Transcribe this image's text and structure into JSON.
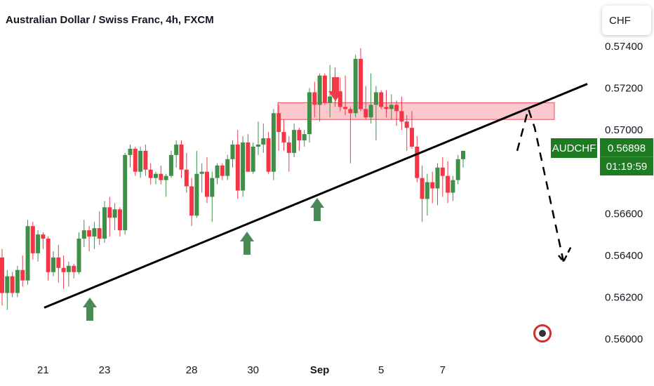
{
  "header": {
    "title": "Australian Dollar / Swiss Franc, 4h, FXCM"
  },
  "currency_box": {
    "label": "CHF"
  },
  "price_tag": {
    "symbol": "AUDCHF",
    "price": "0.56898",
    "countdown": "01:19:59"
  },
  "colors": {
    "up": "#3f8f49",
    "down": "#f23645",
    "trend": "#000000",
    "zone": "#f8a5ac",
    "zone_border": "#ef4a5a",
    "arrow_up": "#4a8a55",
    "arrow_down": "#ef3b48",
    "label_bg": "#1e7b22"
  },
  "chart_data": {
    "type": "candlestick",
    "symbol": "AUDCHF",
    "timeframe": "4h",
    "ylim": [
      0.5598,
      0.5743
    ],
    "y_ticks": [
      "0.57400",
      "0.57200",
      "0.57000",
      "0.56800",
      "0.56600",
      "0.56400",
      "0.56200",
      "0.56000"
    ],
    "x_ticks": [
      {
        "label": "21",
        "index": 8
      },
      {
        "label": "23",
        "index": 20
      },
      {
        "label": "28",
        "index": 37
      },
      {
        "label": "30",
        "index": 49
      },
      {
        "label": "Sep",
        "index": 62
      },
      {
        "label": "5",
        "index": 74
      },
      {
        "label": "7",
        "index": 86
      }
    ],
    "candles": [
      [
        0.5639,
        0.5643,
        0.5616,
        0.5622
      ],
      [
        0.5622,
        0.5633,
        0.5614,
        0.563
      ],
      [
        0.563,
        0.5632,
        0.562,
        0.5622
      ],
      [
        0.5622,
        0.5635,
        0.562,
        0.5633
      ],
      [
        0.5633,
        0.564,
        0.5625,
        0.5628
      ],
      [
        0.5628,
        0.5657,
        0.5626,
        0.5654
      ],
      [
        0.5654,
        0.5656,
        0.5638,
        0.5641
      ],
      [
        0.5641,
        0.5652,
        0.5637,
        0.565
      ],
      [
        0.565,
        0.5651,
        0.5643,
        0.5648
      ],
      [
        0.5648,
        0.5649,
        0.5628,
        0.5632
      ],
      [
        0.5632,
        0.5642,
        0.563,
        0.5639
      ],
      [
        0.5639,
        0.5645,
        0.5627,
        0.5634
      ],
      [
        0.5634,
        0.564,
        0.5624,
        0.5632
      ],
      [
        0.5632,
        0.5637,
        0.5625,
        0.5635
      ],
      [
        0.5635,
        0.5636,
        0.5629,
        0.5632
      ],
      [
        0.5632,
        0.5651,
        0.5631,
        0.5648
      ],
      [
        0.5648,
        0.5657,
        0.5644,
        0.5652
      ],
      [
        0.5652,
        0.5654,
        0.5642,
        0.5649
      ],
      [
        0.5649,
        0.5656,
        0.5643,
        0.5653
      ],
      [
        0.5653,
        0.5661,
        0.5645,
        0.5648
      ],
      [
        0.5648,
        0.5666,
        0.5646,
        0.5663
      ],
      [
        0.5663,
        0.5668,
        0.5649,
        0.5658
      ],
      [
        0.5658,
        0.5665,
        0.5652,
        0.5662
      ],
      [
        0.5662,
        0.5663,
        0.5649,
        0.5652
      ],
      [
        0.5652,
        0.5689,
        0.565,
        0.5688
      ],
      [
        0.5688,
        0.5693,
        0.5682,
        0.5691
      ],
      [
        0.5691,
        0.5692,
        0.5678,
        0.568
      ],
      [
        0.568,
        0.5692,
        0.5677,
        0.569
      ],
      [
        0.569,
        0.5693,
        0.5678,
        0.5681
      ],
      [
        0.5681,
        0.5684,
        0.5674,
        0.5677
      ],
      [
        0.5677,
        0.568,
        0.5674,
        0.5679
      ],
      [
        0.5679,
        0.5683,
        0.5674,
        0.5676
      ],
      [
        0.5676,
        0.5679,
        0.5668,
        0.5678
      ],
      [
        0.5678,
        0.569,
        0.5677,
        0.5688
      ],
      [
        0.5688,
        0.5695,
        0.5682,
        0.5693
      ],
      [
        0.5693,
        0.5695,
        0.5677,
        0.5681
      ],
      [
        0.5681,
        0.5689,
        0.567,
        0.5673
      ],
      [
        0.5673,
        0.5677,
        0.5654,
        0.5659
      ],
      [
        0.5659,
        0.569,
        0.5658,
        0.5679
      ],
      [
        0.5679,
        0.5684,
        0.567,
        0.568
      ],
      [
        0.568,
        0.5687,
        0.5665,
        0.5668
      ],
      [
        0.5668,
        0.568,
        0.5656,
        0.5677
      ],
      [
        0.5677,
        0.5684,
        0.5674,
        0.5683
      ],
      [
        0.5683,
        0.5684,
        0.5676,
        0.5678
      ],
      [
        0.5678,
        0.5688,
        0.5676,
        0.5686
      ],
      [
        0.5686,
        0.5695,
        0.5682,
        0.5693
      ],
      [
        0.5693,
        0.57,
        0.5667,
        0.5671
      ],
      [
        0.5671,
        0.5697,
        0.5668,
        0.5694
      ],
      [
        0.5694,
        0.5698,
        0.568,
        0.568
      ],
      [
        0.568,
        0.5694,
        0.5679,
        0.5692
      ],
      [
        0.5692,
        0.5704,
        0.5688,
        0.5693
      ],
      [
        0.5693,
        0.5703,
        0.5689,
        0.5696
      ],
      [
        0.5696,
        0.5699,
        0.5679,
        0.568
      ],
      [
        0.568,
        0.571,
        0.5676,
        0.5708
      ],
      [
        0.5708,
        0.5712,
        0.569,
        0.5699
      ],
      [
        0.5699,
        0.5705,
        0.569,
        0.5694
      ],
      [
        0.5694,
        0.5697,
        0.568,
        0.5689
      ],
      [
        0.5689,
        0.5703,
        0.5687,
        0.57
      ],
      [
        0.57,
        0.5701,
        0.569,
        0.5695
      ],
      [
        0.5695,
        0.57,
        0.5692,
        0.5698
      ],
      [
        0.5698,
        0.572,
        0.5694,
        0.5718
      ],
      [
        0.5718,
        0.5723,
        0.5706,
        0.5712
      ],
      [
        0.5712,
        0.5727,
        0.5704,
        0.5726
      ],
      [
        0.5726,
        0.5727,
        0.5712,
        0.5713
      ],
      [
        0.5713,
        0.5731,
        0.5706,
        0.5716
      ],
      [
        0.5716,
        0.573,
        0.5711,
        0.5718
      ],
      [
        0.5718,
        0.5725,
        0.5709,
        0.5711
      ],
      [
        0.5711,
        0.5726,
        0.5707,
        0.571
      ],
      [
        0.571,
        0.5711,
        0.5684,
        0.5708
      ],
      [
        0.5708,
        0.5736,
        0.5706,
        0.5734
      ],
      [
        0.5734,
        0.5739,
        0.5709,
        0.571
      ],
      [
        0.571,
        0.5721,
        0.5705,
        0.5706
      ],
      [
        0.5706,
        0.5727,
        0.5703,
        0.5712
      ],
      [
        0.5712,
        0.5721,
        0.5695,
        0.5718
      ],
      [
        0.5718,
        0.5719,
        0.571,
        0.5711
      ],
      [
        0.5711,
        0.5719,
        0.5706,
        0.571
      ],
      [
        0.571,
        0.5717,
        0.5705,
        0.5712
      ],
      [
        0.5712,
        0.5714,
        0.5702,
        0.5709
      ],
      [
        0.5709,
        0.5716,
        0.57,
        0.5704
      ],
      [
        0.5704,
        0.5707,
        0.569,
        0.5701
      ],
      [
        0.5701,
        0.5709,
        0.5691,
        0.5692
      ],
      [
        0.5692,
        0.5697,
        0.5675,
        0.5677
      ],
      [
        0.5677,
        0.5683,
        0.5656,
        0.5667
      ],
      [
        0.5667,
        0.5679,
        0.5659,
        0.5675
      ],
      [
        0.5675,
        0.568,
        0.5665,
        0.5672
      ],
      [
        0.5672,
        0.5684,
        0.5664,
        0.5682
      ],
      [
        0.5682,
        0.5687,
        0.5668,
        0.5678
      ],
      [
        0.5678,
        0.5685,
        0.5665,
        0.567
      ],
      [
        0.567,
        0.5678,
        0.5666,
        0.5676
      ],
      [
        0.5676,
        0.5688,
        0.5674,
        0.5686
      ],
      [
        0.5686,
        0.569,
        0.5682,
        0.569
      ]
    ],
    "annotations": {
      "trendline": [
        [
          0.1,
          0.5615
        ],
        [
          96,
          0.5722
        ]
      ],
      "resistance_zone": [
        0.5705,
        0.5713
      ],
      "projection": [
        [
          0.569,
          0.5708
        ],
        [
          0.5708,
          0.5701
        ],
        [
          0.5701,
          0.5637
        ]
      ],
      "up_arrows": [
        16,
        40,
        52
      ],
      "down_arrows": [
        56
      ]
    }
  }
}
